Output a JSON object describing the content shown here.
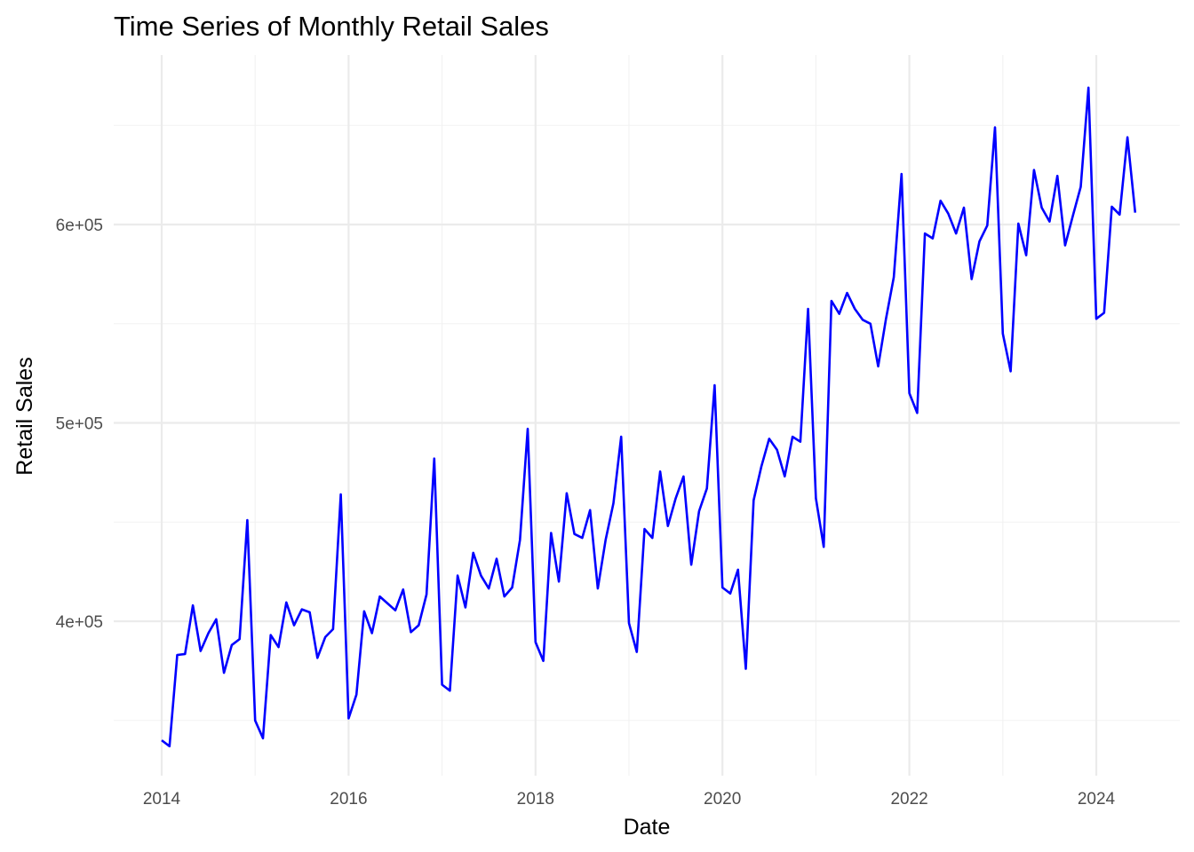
{
  "chart_data": {
    "type": "line",
    "title": "Time Series of Monthly Retail Sales",
    "xlabel": "Date",
    "ylabel": "Retail Sales",
    "x_start": "2014-01",
    "x_ticks": [
      "2014",
      "2016",
      "2018",
      "2020",
      "2022",
      "2024"
    ],
    "y_ticks": [
      400000,
      500000,
      600000
    ],
    "y_tick_labels": [
      "4e+05",
      "5e+05",
      "6e+05"
    ],
    "ylim": [
      327000,
      670000
    ],
    "grid": true,
    "legend": "none",
    "line_color": "#0000ff",
    "series": [
      {
        "values": [
          340000,
          337000,
          383000,
          383500,
          408000,
          385000,
          394000,
          401000,
          374000,
          388000,
          391000,
          451000,
          350000,
          341000,
          393000,
          387000,
          409500,
          398000,
          406000,
          404500,
          381500,
          392000,
          396000,
          464000,
          351000,
          363000,
          405000,
          394000,
          412500,
          409000,
          405500,
          416000,
          394500,
          398000,
          413500,
          482000,
          368000,
          365000,
          423000,
          407000,
          434500,
          423000,
          416500,
          431500,
          412500,
          417000,
          441000,
          497000,
          389500,
          380000,
          444500,
          420000,
          464500,
          444000,
          442000,
          456000,
          416500,
          441000,
          459500,
          493000,
          399000,
          384500,
          446500,
          442000,
          475500,
          448000,
          462000,
          473000,
          428500,
          455500,
          467000,
          519000,
          417000,
          414000,
          426000,
          376000,
          461000,
          478000,
          492000,
          486500,
          473000,
          493000,
          490500,
          557500,
          462000,
          437500,
          561500,
          555000,
          565500,
          557500,
          552000,
          550000,
          528500,
          552500,
          573500,
          625500,
          515000,
          505000,
          595500,
          593000,
          612000,
          605500,
          595500,
          608500,
          572500,
          591500,
          599500,
          649000,
          545000,
          526000,
          600500,
          584500,
          627500,
          608500,
          601500,
          624500,
          589500,
          604500,
          619000,
          669000,
          552500,
          555500,
          609000,
          605000,
          644000,
          606000
        ]
      }
    ]
  }
}
